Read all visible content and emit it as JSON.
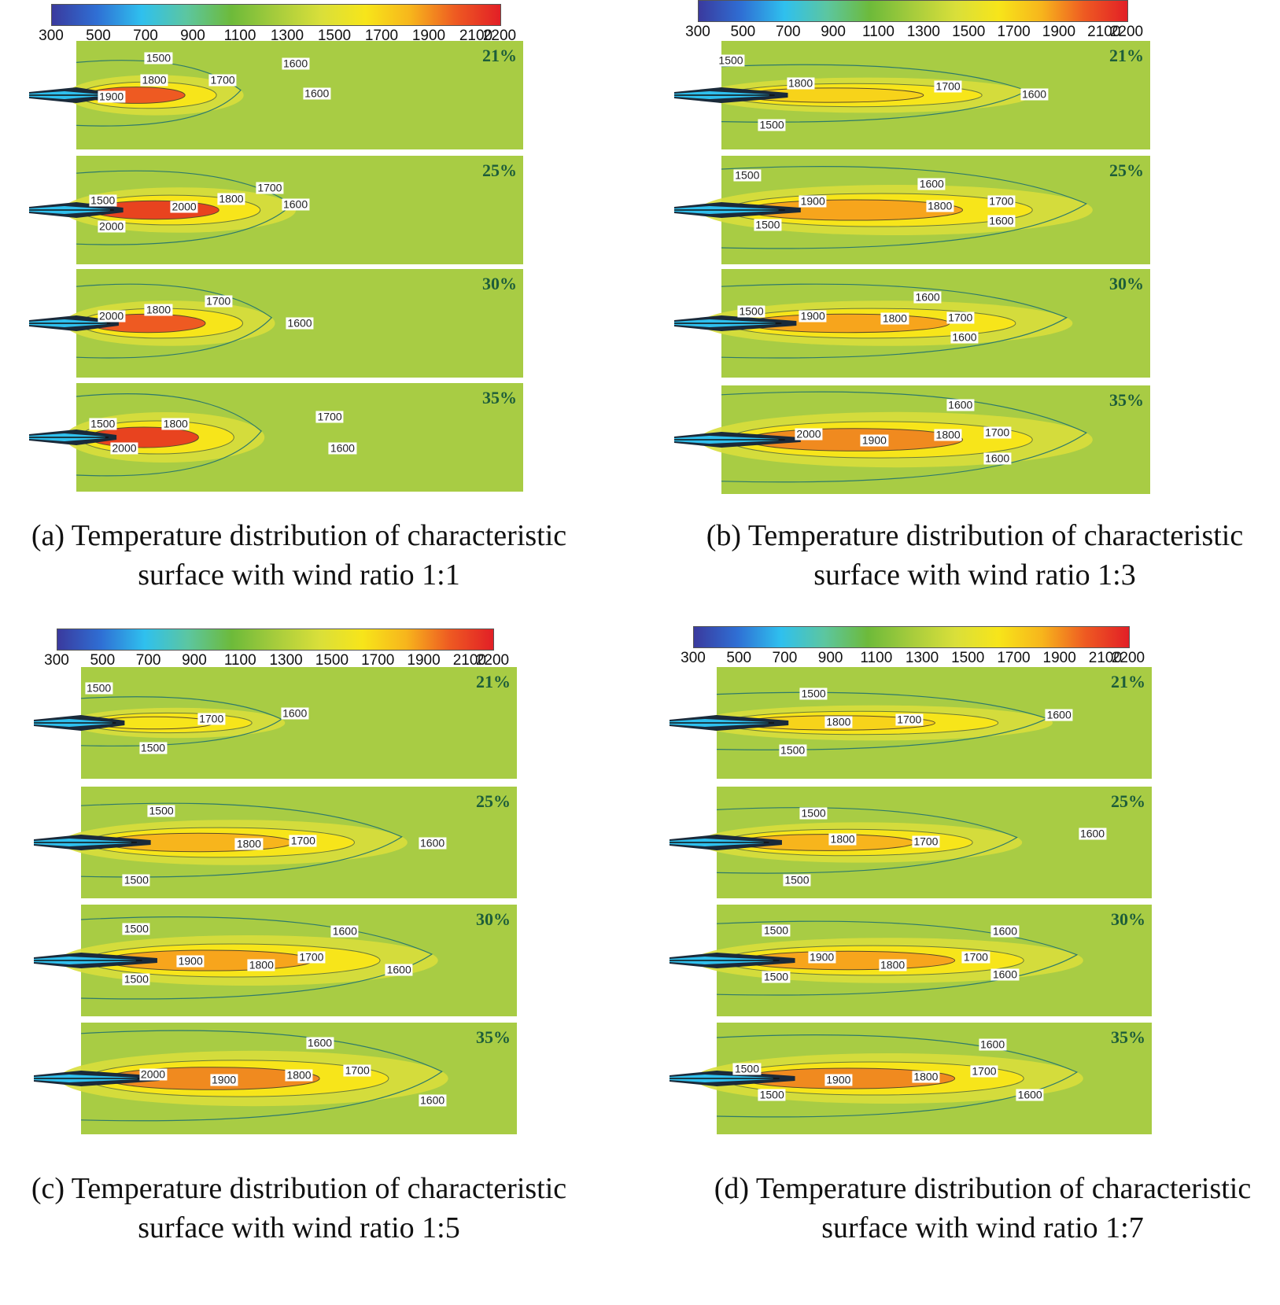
{
  "colormap": {
    "ticks": [
      "300",
      "500",
      "700",
      "900",
      "1100",
      "1300",
      "1500",
      "1700",
      "1900",
      "2100",
      "2200"
    ],
    "min": 300,
    "max": 2200,
    "stops": [
      "#3a3a9e",
      "#2f6fd4",
      "#2fc0ee",
      "#5cc6a0",
      "#6dba3a",
      "#a6cc3c",
      "#d9df3a",
      "#f7e51a",
      "#f7b51c",
      "#ee5a22",
      "#e21f26"
    ],
    "background": "#a8cc44"
  },
  "chart_data": [
    {
      "id": "a",
      "type": "heatmap",
      "caption_line1": "(a) Temperature distribution of characteristic",
      "caption_line2": "surface with wind ratio 1:1",
      "panels": [
        {
          "oxygen": "21%",
          "labels": [
            "1500",
            "1600",
            "1800",
            "1700",
            "1600",
            "1900"
          ]
        },
        {
          "oxygen": "25%",
          "labels": [
            "1500",
            "1700",
            "2000",
            "1800",
            "1600",
            "2000"
          ]
        },
        {
          "oxygen": "30%",
          "labels": [
            "1700",
            "2000",
            "1800",
            "1600"
          ]
        },
        {
          "oxygen": "35%",
          "labels": [
            "1500",
            "1800",
            "1700",
            "2000",
            "1600"
          ]
        }
      ]
    },
    {
      "id": "b",
      "type": "heatmap",
      "caption_line1": "(b) Temperature distribution of characteristic",
      "caption_line2": "surface with wind ratio 1:3",
      "panels": [
        {
          "oxygen": "21%",
          "labels": [
            "1500",
            "1800",
            "1700",
            "1600",
            "1500"
          ]
        },
        {
          "oxygen": "25%",
          "labels": [
            "1500",
            "1600",
            "1900",
            "1800",
            "1700",
            "1500",
            "1600"
          ]
        },
        {
          "oxygen": "30%",
          "labels": [
            "1600",
            "1500",
            "1900",
            "1800",
            "1700",
            "1600"
          ]
        },
        {
          "oxygen": "35%",
          "labels": [
            "1600",
            "2000",
            "1900",
            "1800",
            "1700",
            "1600"
          ]
        }
      ]
    },
    {
      "id": "c",
      "type": "heatmap",
      "caption_line1": "(c) Temperature distribution of characteristic",
      "caption_line2": "surface with wind ratio 1:5",
      "panels": [
        {
          "oxygen": "21%",
          "labels": [
            "1500",
            "1700",
            "1600",
            "1500"
          ]
        },
        {
          "oxygen": "25%",
          "labels": [
            "1500",
            "1800",
            "1700",
            "1600",
            "1500"
          ]
        },
        {
          "oxygen": "30%",
          "labels": [
            "1500",
            "1600",
            "1900",
            "1800",
            "1700",
            "1600",
            "1500"
          ]
        },
        {
          "oxygen": "35%",
          "labels": [
            "1600",
            "2000",
            "1900",
            "1800",
            "1700",
            "1600"
          ]
        }
      ]
    },
    {
      "id": "d",
      "type": "heatmap",
      "caption_line1": "(d) Temperature distribution of characteristic",
      "caption_line2": "surface with wind ratio 1:7",
      "panels": [
        {
          "oxygen": "21%",
          "labels": [
            "1500",
            "1800",
            "1700",
            "1600",
            "1500"
          ]
        },
        {
          "oxygen": "25%",
          "labels": [
            "1500",
            "1800",
            "1700",
            "1600",
            "1500"
          ]
        },
        {
          "oxygen": "30%",
          "labels": [
            "1500",
            "1600",
            "1900",
            "1800",
            "1700",
            "1600",
            "1500"
          ]
        },
        {
          "oxygen": "35%",
          "labels": [
            "1600",
            "1500",
            "1900",
            "1800",
            "1700",
            "1500",
            "1600"
          ]
        }
      ]
    }
  ]
}
